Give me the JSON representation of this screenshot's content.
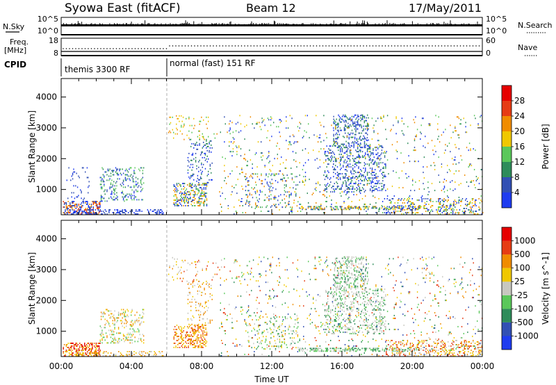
{
  "header": {
    "station": "Syowa East (fitACF)",
    "beam": "Beam 12",
    "date": "17/May/2011"
  },
  "top_panels": {
    "nsky": {
      "label": "N.Sky",
      "ticks": [
        "10^5",
        "10^0"
      ]
    },
    "freq": {
      "label_line1": "Freq.",
      "label_line2": "[MHz]",
      "ticks": [
        "18",
        "8"
      ]
    },
    "nsearch": {
      "label": "N.Search",
      "ticks": [
        "10^5",
        "10^0"
      ]
    },
    "nave": {
      "label": "Nave",
      "ticks": [
        "60",
        "0"
      ]
    },
    "cpid": {
      "label": "CPID",
      "segments": [
        {
          "name": "themis 3300 RF",
          "start_hour": 0,
          "end_hour": 6
        },
        {
          "name": "normal (fast) 151 RF",
          "start_hour": 6,
          "end_hour": 24
        }
      ]
    }
  },
  "chart_data": [
    {
      "type": "heatmap",
      "title": "",
      "xlabel": "",
      "ylabel": "Slant Range [km]",
      "xlim": [
        0,
        24
      ],
      "ylim": [
        180,
        4600
      ],
      "yticks": [
        1000,
        2000,
        3000,
        4000
      ],
      "colorbar": {
        "label": "Power [dB]",
        "ticks": [
          "4",
          "8",
          "12",
          "16",
          "20",
          "24",
          "28"
        ],
        "colors": [
          "#1f3cf0",
          "#3250b4",
          "#2e8c5a",
          "#5ac85a",
          "#f0c800",
          "#f08c00",
          "#e63c14",
          "#e60000"
        ]
      },
      "regions": [
        {
          "h0": 0.1,
          "h1": 2.2,
          "r0": 180,
          "r1": 600,
          "density": 0.45,
          "levels": [
            0,
            1,
            5,
            6
          ]
        },
        {
          "h0": 0.3,
          "h1": 1.6,
          "r0": 600,
          "r1": 1700,
          "density": 0.06,
          "levels": [
            0,
            1
          ]
        },
        {
          "h0": 2.2,
          "h1": 4.7,
          "r0": 600,
          "r1": 1700,
          "density": 0.18,
          "levels": [
            0,
            1,
            2,
            3
          ]
        },
        {
          "h0": 0.5,
          "h1": 5.8,
          "r0": 180,
          "r1": 330,
          "density": 0.3,
          "levels": [
            0,
            1
          ]
        },
        {
          "h0": 6.4,
          "h1": 8.3,
          "r0": 450,
          "r1": 1200,
          "density": 0.35,
          "levels": [
            0,
            1,
            2,
            3,
            4,
            5
          ]
        },
        {
          "h0": 7.2,
          "h1": 8.6,
          "r0": 1200,
          "r1": 2600,
          "density": 0.12,
          "levels": [
            0,
            1,
            2
          ]
        },
        {
          "h0": 6.1,
          "h1": 9.0,
          "r0": 2600,
          "r1": 3400,
          "density": 0.06,
          "levels": [
            3,
            4,
            5
          ]
        },
        {
          "h0": 10.5,
          "h1": 13.5,
          "r0": 400,
          "r1": 1500,
          "density": 0.1,
          "levels": [
            0,
            1,
            2,
            3,
            5
          ]
        },
        {
          "h0": 9.0,
          "h1": 14.5,
          "r0": 180,
          "r1": 3400,
          "density": 0.035,
          "levels": [
            0,
            1,
            2,
            3,
            4,
            5
          ]
        },
        {
          "h0": 15.0,
          "h1": 18.5,
          "r0": 900,
          "r1": 2400,
          "density": 0.2,
          "levels": [
            0,
            1,
            2
          ]
        },
        {
          "h0": 15.5,
          "h1": 17.5,
          "r0": 2400,
          "r1": 3400,
          "density": 0.28,
          "levels": [
            0,
            1,
            2
          ]
        },
        {
          "h0": 13.5,
          "h1": 20.5,
          "r0": 330,
          "r1": 440,
          "density": 0.4,
          "levels": [
            1,
            2,
            3,
            4,
            5
          ]
        },
        {
          "h0": 14.5,
          "h1": 24.0,
          "r0": 180,
          "r1": 3400,
          "density": 0.035,
          "levels": [
            0,
            1,
            2,
            3,
            4,
            5
          ]
        },
        {
          "h0": 18.5,
          "h1": 24.0,
          "r0": 180,
          "r1": 700,
          "density": 0.22,
          "levels": [
            0,
            1,
            3,
            4,
            5
          ]
        }
      ]
    },
    {
      "type": "heatmap",
      "title": "",
      "xlabel": "Time UT",
      "ylabel": "Slant Range [km]",
      "xlim": [
        0,
        24
      ],
      "ylim": [
        180,
        4600
      ],
      "xticks": [
        "00:00",
        "04:00",
        "08:00",
        "12:00",
        "16:00",
        "20:00",
        "00:00"
      ],
      "yticks": [
        1000,
        2000,
        3000,
        4000
      ],
      "colorbar": {
        "label": "Velocity [m s^-1]",
        "ticks": [
          "1000",
          "500",
          "100",
          "25",
          "-25",
          "-100",
          "-500",
          "-1000"
        ],
        "colors": [
          "#1f3cf0",
          "#3250b4",
          "#2e8c5a",
          "#5ac85a",
          "#c8c8c0",
          "#f0c800",
          "#f08c00",
          "#e63c14",
          "#e60000"
        ]
      },
      "regions": [
        {
          "h0": 0.1,
          "h1": 2.2,
          "r0": 180,
          "r1": 600,
          "density": 0.45,
          "levels": [
            5,
            6,
            7,
            8
          ]
        },
        {
          "h0": 2.2,
          "h1": 4.7,
          "r0": 600,
          "r1": 1700,
          "density": 0.18,
          "levels": [
            3,
            4,
            5,
            6
          ]
        },
        {
          "h0": 0.5,
          "h1": 5.8,
          "r0": 180,
          "r1": 330,
          "density": 0.25,
          "levels": [
            4,
            5,
            6
          ]
        },
        {
          "h0": 6.4,
          "h1": 8.3,
          "r0": 450,
          "r1": 1200,
          "density": 0.35,
          "levels": [
            5,
            6,
            7
          ]
        },
        {
          "h0": 7.2,
          "h1": 8.6,
          "r0": 1200,
          "r1": 2600,
          "density": 0.12,
          "levels": [
            4,
            5,
            6
          ]
        },
        {
          "h0": 6.1,
          "h1": 9.0,
          "r0": 2600,
          "r1": 3400,
          "density": 0.06,
          "levels": [
            4,
            5,
            6,
            7
          ]
        },
        {
          "h0": 10.5,
          "h1": 13.5,
          "r0": 400,
          "r1": 1500,
          "density": 0.1,
          "levels": [
            2,
            3,
            4,
            5
          ]
        },
        {
          "h0": 9.0,
          "h1": 14.5,
          "r0": 180,
          "r1": 3400,
          "density": 0.035,
          "levels": [
            1,
            2,
            3,
            4,
            5,
            6,
            7
          ]
        },
        {
          "h0": 15.0,
          "h1": 18.5,
          "r0": 900,
          "r1": 2400,
          "density": 0.22,
          "levels": [
            2,
            3,
            4,
            4,
            4
          ]
        },
        {
          "h0": 15.5,
          "h1": 17.5,
          "r0": 2400,
          "r1": 3400,
          "density": 0.28,
          "levels": [
            2,
            3,
            4,
            4
          ]
        },
        {
          "h0": 13.5,
          "h1": 20.5,
          "r0": 330,
          "r1": 440,
          "density": 0.4,
          "levels": [
            2,
            3,
            4
          ]
        },
        {
          "h0": 14.5,
          "h1": 24.0,
          "r0": 180,
          "r1": 3400,
          "density": 0.035,
          "levels": [
            1,
            2,
            3,
            4,
            5,
            6,
            7
          ]
        },
        {
          "h0": 18.5,
          "h1": 24.0,
          "r0": 180,
          "r1": 700,
          "density": 0.22,
          "levels": [
            4,
            5,
            6,
            7
          ]
        }
      ]
    }
  ]
}
